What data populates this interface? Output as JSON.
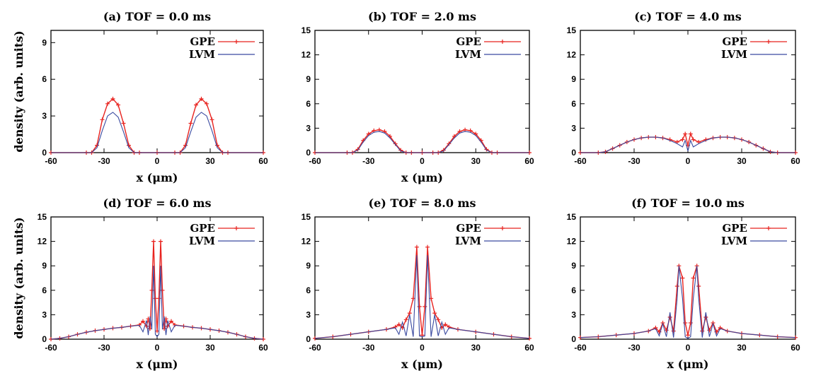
{
  "chart_data": [
    {
      "type": "line",
      "title": "(a)   TOF = 0.0 ms",
      "xlabel": "x (μm)",
      "ylabel": "density (arb. units)",
      "xlim": [
        -60,
        60
      ],
      "ylim": [
        0,
        10
      ],
      "xticks": [
        "-60",
        "-30",
        "0",
        "30",
        "60"
      ],
      "yticks": [
        "0",
        "3",
        "6",
        "9"
      ],
      "legend": "top-right",
      "grid": false,
      "series": [
        {
          "name": "GPE",
          "color": "#e8231f",
          "markers": true,
          "x": [
            -60,
            -40,
            -37,
            -34,
            -31,
            -28,
            -25,
            -22,
            -19,
            -16,
            -13,
            -10,
            0,
            10,
            13,
            16,
            19,
            22,
            25,
            28,
            31,
            34,
            37,
            40,
            60
          ],
          "y": [
            0,
            0,
            0,
            0.6,
            2.7,
            4.0,
            4.4,
            3.9,
            2.4,
            0.6,
            0,
            0,
            0,
            0,
            0,
            0.6,
            2.4,
            3.9,
            4.4,
            4.0,
            2.7,
            0.6,
            0,
            0,
            0
          ]
        },
        {
          "name": "LVM",
          "color": "#3a4aa0",
          "markers": false,
          "x": [
            -60,
            -40,
            -37,
            -34,
            -31,
            -28,
            -25,
            -22,
            -19,
            -16,
            -13,
            -10,
            0,
            10,
            13,
            16,
            19,
            22,
            25,
            28,
            31,
            34,
            37,
            40,
            60
          ],
          "y": [
            0,
            0,
            0,
            0.4,
            1.8,
            3.0,
            3.3,
            2.9,
            1.7,
            0.4,
            0,
            0,
            0,
            0,
            0,
            0.4,
            1.7,
            2.9,
            3.3,
            3.0,
            1.8,
            0.4,
            0,
            0,
            0
          ]
        }
      ]
    },
    {
      "type": "line",
      "title": "(b)   TOF = 2.0 ms",
      "xlabel": "x (μm)",
      "ylabel": "",
      "xlim": [
        -60,
        60
      ],
      "ylim": [
        0,
        15
      ],
      "xticks": [
        "-60",
        "-30",
        "0",
        "30",
        "60"
      ],
      "yticks": [
        "0",
        "3",
        "6",
        "9",
        "12",
        "15"
      ],
      "legend": "top-right",
      "grid": false,
      "series": [
        {
          "name": "GPE",
          "color": "#e8231f",
          "markers": true,
          "x": [
            -60,
            -42,
            -39,
            -36,
            -33,
            -30,
            -27,
            -24,
            -21,
            -18,
            -15,
            -12,
            -9,
            -6,
            0,
            6,
            9,
            12,
            15,
            18,
            21,
            24,
            27,
            30,
            33,
            36,
            39,
            42,
            60
          ],
          "y": [
            0,
            0,
            0,
            0.4,
            1.5,
            2.3,
            2.7,
            2.8,
            2.6,
            2.0,
            1.1,
            0.3,
            0,
            0,
            0,
            0,
            0,
            0.3,
            1.1,
            2.0,
            2.6,
            2.8,
            2.7,
            2.3,
            1.5,
            0.4,
            0,
            0,
            0
          ]
        },
        {
          "name": "LVM",
          "color": "#3a4aa0",
          "markers": false,
          "x": [
            -60,
            -42,
            -39,
            -36,
            -33,
            -30,
            -27,
            -24,
            -21,
            -18,
            -15,
            -12,
            -9,
            -6,
            0,
            6,
            9,
            12,
            15,
            18,
            21,
            24,
            27,
            30,
            33,
            36,
            39,
            42,
            60
          ],
          "y": [
            0,
            0,
            0,
            0.3,
            1.3,
            2.1,
            2.5,
            2.6,
            2.4,
            1.8,
            1.0,
            0.2,
            0,
            0,
            0,
            0,
            0,
            0.2,
            1.0,
            1.8,
            2.4,
            2.6,
            2.5,
            2.1,
            1.3,
            0.3,
            0,
            0,
            0
          ]
        }
      ]
    },
    {
      "type": "line",
      "title": "(c)   TOF = 4.0 ms",
      "xlabel": "",
      "ylabel": "",
      "xlim": [
        -60,
        60
      ],
      "ylim": [
        0,
        15
      ],
      "xticks": [
        "-60",
        "-30",
        "0",
        "30",
        "60"
      ],
      "yticks": [
        "0",
        "3",
        "6",
        "9",
        "12",
        "15"
      ],
      "legend": "top-right",
      "grid": false,
      "series": [
        {
          "name": "GPE",
          "color": "#e8231f",
          "markers": true,
          "x": [
            -60,
            -50,
            -46,
            -42,
            -38,
            -34,
            -30,
            -26,
            -22,
            -18,
            -14,
            -10,
            -6,
            -3,
            -1.5,
            0,
            1.5,
            3,
            6,
            10,
            14,
            18,
            22,
            26,
            30,
            34,
            38,
            42,
            46,
            50,
            60
          ],
          "y": [
            0,
            0,
            0.1,
            0.5,
            0.9,
            1.3,
            1.6,
            1.8,
            1.9,
            1.9,
            1.8,
            1.6,
            1.3,
            1.6,
            2.3,
            0.9,
            2.3,
            1.6,
            1.3,
            1.6,
            1.8,
            1.9,
            1.9,
            1.8,
            1.6,
            1.3,
            0.9,
            0.5,
            0.1,
            0,
            0
          ]
        },
        {
          "name": "LVM",
          "color": "#3a4aa0",
          "markers": false,
          "x": [
            -60,
            -50,
            -46,
            -42,
            -38,
            -34,
            -30,
            -26,
            -22,
            -18,
            -14,
            -10,
            -6,
            -3,
            -1.5,
            0,
            1.5,
            3,
            6,
            10,
            14,
            18,
            22,
            26,
            30,
            34,
            38,
            42,
            46,
            50,
            60
          ],
          "y": [
            0,
            0,
            0.1,
            0.5,
            0.9,
            1.3,
            1.6,
            1.8,
            1.9,
            1.9,
            1.8,
            1.5,
            1.1,
            0.7,
            1.5,
            0.2,
            1.5,
            0.7,
            1.1,
            1.5,
            1.8,
            1.9,
            1.9,
            1.8,
            1.6,
            1.3,
            0.9,
            0.5,
            0.1,
            0,
            0
          ]
        }
      ]
    },
    {
      "type": "line",
      "title": "(d)   TOF = 6.0 ms",
      "xlabel": "x (μm)",
      "ylabel": "density (arb. units)",
      "xlim": [
        -60,
        60
      ],
      "ylim": [
        0,
        15
      ],
      "xticks": [
        "-60",
        "-30",
        "0",
        "30",
        "60"
      ],
      "yticks": [
        "0",
        "3",
        "6",
        "9",
        "12",
        "15"
      ],
      "legend": "top-right",
      "grid": false,
      "series": [
        {
          "name": "GPE",
          "color": "#e8231f",
          "markers": true,
          "x": [
            -60,
            -55,
            -50,
            -45,
            -40,
            -35,
            -30,
            -25,
            -20,
            -15,
            -10,
            -8,
            -6,
            -5,
            -4,
            -3,
            -2,
            -1,
            0,
            1,
            2,
            3,
            4,
            5,
            6,
            8,
            10,
            15,
            20,
            25,
            30,
            35,
            40,
            45,
            50,
            55,
            60
          ],
          "y": [
            0,
            0.1,
            0.3,
            0.6,
            0.85,
            1.05,
            1.2,
            1.35,
            1.45,
            1.6,
            1.75,
            2.2,
            1.6,
            2.5,
            1.3,
            6.0,
            12.0,
            5.0,
            1.0,
            5.0,
            12.0,
            6.0,
            1.3,
            2.5,
            1.6,
            2.2,
            1.75,
            1.6,
            1.45,
            1.35,
            1.2,
            1.05,
            0.85,
            0.6,
            0.3,
            0.1,
            0
          ]
        },
        {
          "name": "LVM",
          "color": "#3a4aa0",
          "markers": false,
          "x": [
            -60,
            -55,
            -50,
            -45,
            -40,
            -35,
            -30,
            -25,
            -20,
            -15,
            -10,
            -8,
            -6,
            -5,
            -4,
            -3,
            -2,
            -1,
            0,
            1,
            2,
            3,
            4,
            5,
            6,
            8,
            10,
            15,
            20,
            25,
            30,
            35,
            40,
            45,
            50,
            55,
            60
          ],
          "y": [
            0,
            0.1,
            0.3,
            0.6,
            0.85,
            1.05,
            1.2,
            1.35,
            1.45,
            1.6,
            1.7,
            0.9,
            2.3,
            0.5,
            2.8,
            1.2,
            9.0,
            0.6,
            0.3,
            0.6,
            9.0,
            1.2,
            2.8,
            0.5,
            2.3,
            0.9,
            1.7,
            1.6,
            1.45,
            1.35,
            1.2,
            1.05,
            0.85,
            0.6,
            0.3,
            0.1,
            0
          ]
        }
      ]
    },
    {
      "type": "line",
      "title": "(e)   TOF = 8.0 ms",
      "xlabel": "x (μm)",
      "ylabel": "",
      "xlim": [
        -60,
        60
      ],
      "ylim": [
        0,
        15
      ],
      "xticks": [
        "-60",
        "-30",
        "0",
        "30",
        "60"
      ],
      "yticks": [
        "0",
        "3",
        "6",
        "9",
        "12",
        "15"
      ],
      "legend": "top-right",
      "grid": false,
      "series": [
        {
          "name": "GPE",
          "color": "#e8231f",
          "markers": true,
          "x": [
            -60,
            -50,
            -40,
            -30,
            -20,
            -15,
            -13,
            -11,
            -9,
            -7,
            -5,
            -3,
            -1.5,
            0,
            1.5,
            3,
            5,
            7,
            9,
            11,
            13,
            15,
            20,
            30,
            40,
            50,
            60
          ],
          "y": [
            0.1,
            0.3,
            0.6,
            0.9,
            1.2,
            1.5,
            1.8,
            1.4,
            2.4,
            3.2,
            5.0,
            11.3,
            4.0,
            0.5,
            4.0,
            11.3,
            5.0,
            3.2,
            2.4,
            1.4,
            1.8,
            1.5,
            1.2,
            0.9,
            0.6,
            0.3,
            0.1
          ]
        },
        {
          "name": "LVM",
          "color": "#3a4aa0",
          "markers": false,
          "x": [
            -60,
            -50,
            -40,
            -30,
            -20,
            -15,
            -13,
            -11,
            -9,
            -7,
            -5,
            -3,
            -1.5,
            0,
            1.5,
            3,
            5,
            7,
            9,
            11,
            13,
            15,
            20,
            30,
            40,
            50,
            60
          ],
          "y": [
            0.1,
            0.3,
            0.6,
            0.9,
            1.2,
            1.4,
            0.6,
            2.1,
            0.4,
            3.0,
            0.3,
            10.3,
            0.4,
            0.3,
            0.4,
            10.3,
            0.3,
            3.0,
            0.4,
            2.1,
            0.6,
            1.4,
            1.2,
            0.9,
            0.6,
            0.3,
            0.1
          ]
        }
      ]
    },
    {
      "type": "line",
      "title": "(f)   TOF = 10.0 ms",
      "xlabel": "x (μm)",
      "ylabel": "",
      "xlim": [
        -60,
        60
      ],
      "ylim": [
        0,
        15
      ],
      "xticks": [
        "-60",
        "-30",
        "0",
        "30",
        "60"
      ],
      "yticks": [
        "0",
        "3",
        "6",
        "9",
        "12",
        "15"
      ],
      "legend": "top-right",
      "grid": false,
      "series": [
        {
          "name": "GPE",
          "color": "#e8231f",
          "markers": true,
          "x": [
            -60,
            -50,
            -40,
            -30,
            -22,
            -18,
            -16,
            -14,
            -12,
            -10,
            -8,
            -6,
            -5,
            -3,
            -1.5,
            0,
            1.5,
            3,
            5,
            6,
            8,
            10,
            12,
            14,
            16,
            18,
            22,
            30,
            40,
            50,
            60
          ],
          "y": [
            0.2,
            0.3,
            0.5,
            0.7,
            1.0,
            1.4,
            0.9,
            2.0,
            1.1,
            2.7,
            1.0,
            6.5,
            9.0,
            7.5,
            2.0,
            0.5,
            2.0,
            7.5,
            9.0,
            6.5,
            1.0,
            2.7,
            1.1,
            2.0,
            0.9,
            1.4,
            1.0,
            0.7,
            0.5,
            0.3,
            0.2
          ]
        },
        {
          "name": "LVM",
          "color": "#3a4aa0",
          "markers": false,
          "x": [
            -60,
            -50,
            -40,
            -30,
            -22,
            -18,
            -16,
            -14,
            -12,
            -10,
            -8,
            -6,
            -5,
            -3,
            -1.5,
            0,
            1.5,
            3,
            5,
            6,
            8,
            10,
            12,
            14,
            16,
            18,
            22,
            30,
            40,
            50,
            60
          ],
          "y": [
            0.2,
            0.3,
            0.5,
            0.7,
            1.0,
            1.3,
            0.4,
            1.9,
            0.3,
            3.3,
            0.2,
            5.0,
            9.0,
            5.0,
            0.3,
            0.1,
            0.3,
            5.0,
            9.0,
            5.0,
            0.2,
            3.3,
            0.3,
            1.9,
            0.4,
            1.3,
            1.0,
            0.7,
            0.5,
            0.3,
            0.2
          ]
        }
      ]
    }
  ]
}
